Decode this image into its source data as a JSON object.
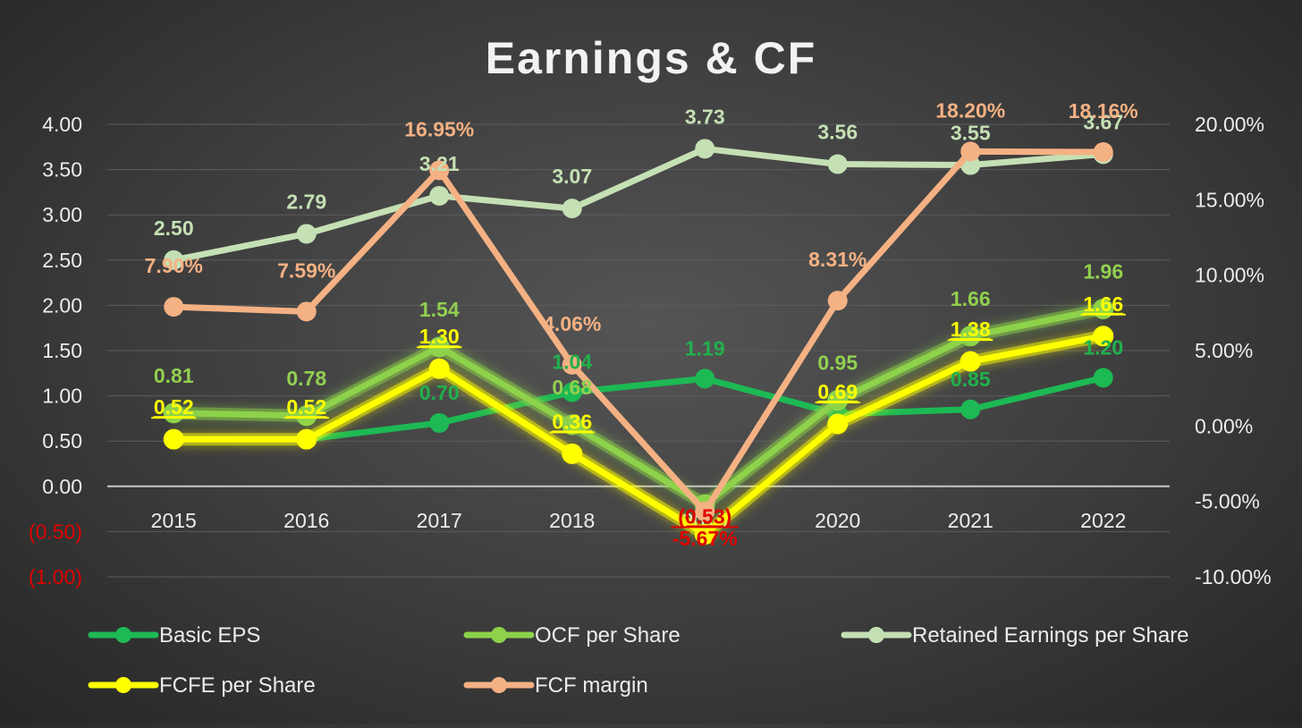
{
  "chart_data": {
    "type": "line",
    "title": "Earnings & CF",
    "categories": [
      "2015",
      "2016",
      "2017",
      "2018",
      "2019",
      "2020",
      "2021",
      "2022"
    ],
    "y_left": {
      "ylim": [
        -1.0,
        4.0
      ],
      "ticks": [
        4.0,
        3.5,
        3.0,
        2.5,
        2.0,
        1.5,
        1.0,
        0.5,
        0.0,
        -0.5,
        -1.0
      ],
      "tick_labels": [
        "4.00",
        "3.50",
        "3.00",
        "2.50",
        "2.00",
        "1.50",
        "1.00",
        "0.50",
        "0.00",
        "(0.50)",
        "(1.00)"
      ],
      "negative_color": "#e00000"
    },
    "y_right": {
      "ylim": [
        -10.0,
        20.0
      ],
      "ticks": [
        20,
        15,
        10,
        5,
        0,
        -5,
        -10
      ],
      "tick_labels": [
        "20.00%",
        "15.00%",
        "10.00%",
        "5.00%",
        "0.00%",
        "-5.00%",
        "-10.00%"
      ]
    },
    "grid": true,
    "legend_position": "bottom",
    "series": [
      {
        "name": "Basic EPS",
        "axis": "left",
        "color": "#1db954",
        "label_color": "#22b14c",
        "values": [
          0.52,
          0.52,
          0.7,
          1.04,
          1.19,
          0.8,
          0.85,
          1.2
        ],
        "labels": [
          "",
          "",
          "0.70",
          "1.04",
          "1.19",
          "",
          "0.85",
          "1.20"
        ]
      },
      {
        "name": "OCF per Share",
        "axis": "left",
        "color": "#8dd24a",
        "label_color": "#92d050",
        "glow": true,
        "values": [
          0.81,
          0.78,
          1.54,
          0.68,
          -0.2,
          0.95,
          1.66,
          1.96
        ],
        "labels": [
          "0.81",
          "0.78",
          "1.54",
          "0.68",
          "",
          "0.95",
          "1.66",
          "1.96"
        ]
      },
      {
        "name": "Retained Earnings per Share",
        "axis": "left",
        "color": "#c5e0b4",
        "label_color": "#c5e0b4",
        "values": [
          2.5,
          2.79,
          3.21,
          3.07,
          3.73,
          3.56,
          3.55,
          3.67
        ],
        "labels": [
          "2.50",
          "2.79",
          "3.21",
          "3.07",
          "3.73",
          "3.56",
          "3.55",
          "3.67"
        ]
      },
      {
        "name": "FCFE per Share",
        "axis": "left",
        "color": "#ffff00",
        "label_color": "#ffff00",
        "glow": true,
        "underline": true,
        "values": [
          0.52,
          0.52,
          1.3,
          0.36,
          -0.53,
          0.69,
          1.38,
          1.66
        ],
        "labels": [
          "0.52",
          "0.52",
          "1.30",
          "0.36",
          "(0.53)",
          "0.69",
          "1.38",
          "1.66"
        ],
        "negative_label_color": "#e00000"
      },
      {
        "name": "FCF margin",
        "axis": "right",
        "color": "#f4b183",
        "label_color": "#f4b183",
        "values": [
          7.9,
          7.59,
          16.95,
          4.06,
          -5.67,
          8.31,
          18.2,
          18.16
        ],
        "labels": [
          "7.90%",
          "7.59%",
          "16.95%",
          "4.06%",
          "-5.67%",
          "8.31%",
          "18.20%",
          "18.16%"
        ],
        "negative_label_color": "#e00000"
      }
    ]
  },
  "legend": {
    "items": [
      "Basic EPS",
      "OCF per Share",
      "Retained Earnings per Share",
      "FCFE per Share",
      "FCF margin"
    ]
  }
}
